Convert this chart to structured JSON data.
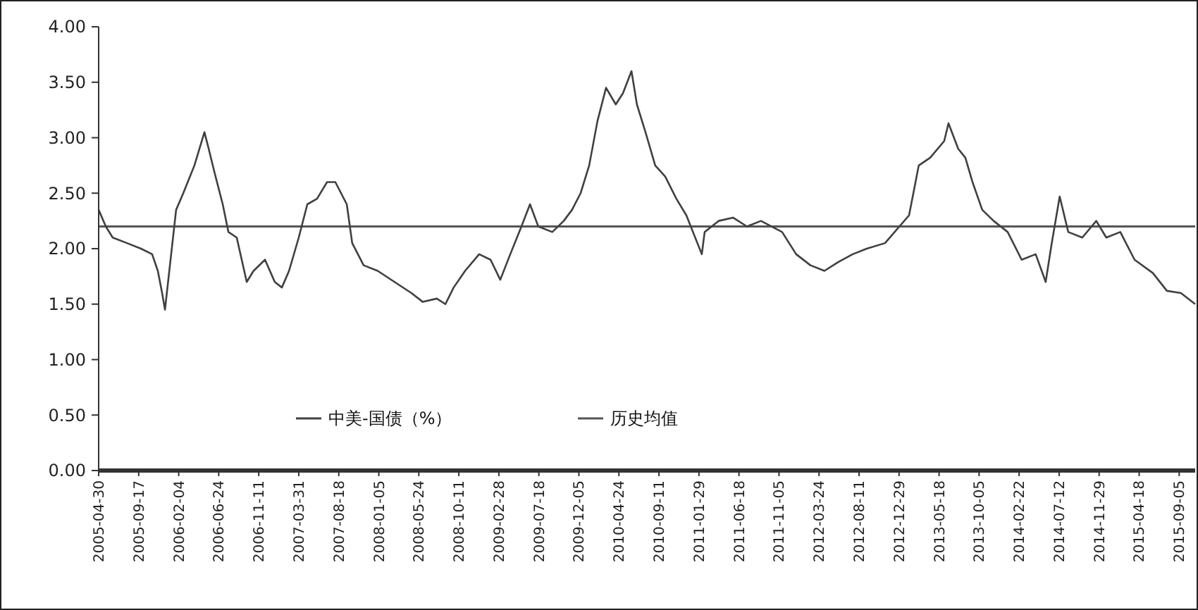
{
  "chart_data": {
    "type": "line",
    "xlim": [
      "2005-04-30",
      "2015-10-31"
    ],
    "xticks": [
      "2005-04-30",
      "2005-09-17",
      "2006-02-04",
      "2006-06-24",
      "2006-11-11",
      "2007-03-31",
      "2007-08-18",
      "2008-01-05",
      "2008-05-24",
      "2008-10-11",
      "2009-02-28",
      "2009-07-18",
      "2009-12-05",
      "2010-04-24",
      "2010-09-11",
      "2011-01-29",
      "2011-06-18",
      "2011-11-05",
      "2012-03-24",
      "2012-08-11",
      "2012-12-29",
      "2013-05-18",
      "2013-10-05",
      "2014-02-22",
      "2014-07-12",
      "2014-11-29",
      "2015-04-18",
      "2015-09-05"
    ],
    "ylim": [
      0,
      4
    ],
    "yticks": [
      {
        "value": 0,
        "label": "0.00"
      },
      {
        "value": 0.5,
        "label": "0.50"
      },
      {
        "value": 1,
        "label": "1.00"
      },
      {
        "value": 1.5,
        "label": "1.50"
      },
      {
        "value": 2,
        "label": "2.00"
      },
      {
        "value": 2.5,
        "label": "2.50"
      },
      {
        "value": 3,
        "label": "3.00"
      },
      {
        "value": 3.5,
        "label": "3.50"
      },
      {
        "value": 4,
        "label": "4.00"
      }
    ],
    "grid": false,
    "legend": "bottom",
    "marker": "none",
    "line_style": "solid",
    "ref_lines": [
      {
        "axis": "y",
        "value": 2.2,
        "label": "历史均值",
        "color": "#555555"
      }
    ],
    "series": [
      {
        "name": "中美-国债（%）",
        "color": "#404040",
        "x": [
          "2005-04-30",
          "2005-05-25",
          "2005-06-18",
          "2005-08-07",
          "2005-09-25",
          "2005-11-03",
          "2005-11-23",
          "2005-12-08",
          "2005-12-18",
          "2006-01-26",
          "2006-02-20",
          "2006-03-31",
          "2006-05-05",
          "2006-05-20",
          "2006-06-08",
          "2006-07-08",
          "2006-07-28",
          "2006-08-26",
          "2006-09-30",
          "2006-10-24",
          "2006-12-03",
          "2007-01-06",
          "2007-01-31",
          "2007-02-25",
          "2007-03-31",
          "2007-04-30",
          "2007-06-03",
          "2007-07-08",
          "2007-08-06",
          "2007-09-15",
          "2007-10-04",
          "2007-11-13",
          "2008-01-01",
          "2008-02-29",
          "2008-04-28",
          "2008-06-07",
          "2008-07-26",
          "2008-08-25",
          "2008-09-23",
          "2008-11-02",
          "2008-12-21",
          "2009-01-30",
          "2009-03-05",
          "2009-04-09",
          "2009-05-18",
          "2009-06-17",
          "2009-07-16",
          "2009-09-03",
          "2009-10-13",
          "2009-11-11",
          "2009-12-11",
          "2010-01-10",
          "2010-02-08",
          "2010-03-10",
          "2010-04-13",
          "2010-05-08",
          "2010-06-07",
          "2010-06-26",
          "2010-07-26",
          "2010-08-29",
          "2010-10-03",
          "2010-11-11",
          "2010-12-16",
          "2011-02-08",
          "2011-02-18",
          "2011-04-08",
          "2011-05-28",
          "2011-07-16",
          "2011-09-03",
          "2011-11-16",
          "2012-01-04",
          "2012-02-23",
          "2012-04-12",
          "2012-05-31",
          "2012-07-20",
          "2012-09-07",
          "2012-11-10",
          "2013-02-02",
          "2013-03-08",
          "2013-04-17",
          "2013-06-05",
          "2013-06-20",
          "2013-07-24",
          "2013-08-18",
          "2013-09-12",
          "2013-10-16",
          "2013-11-25",
          "2014-01-13",
          "2014-03-03",
          "2014-04-21",
          "2014-05-26",
          "2014-06-15",
          "2014-07-14",
          "2014-08-13",
          "2014-10-01",
          "2014-11-19",
          "2014-12-24",
          "2015-02-11",
          "2015-04-02",
          "2015-06-05",
          "2015-07-24",
          "2015-09-11",
          "2015-10-31"
        ],
        "values": [
          2.35,
          2.2,
          2.1,
          2.05,
          2.0,
          1.95,
          1.8,
          1.6,
          1.45,
          2.35,
          2.5,
          2.75,
          3.05,
          2.9,
          2.7,
          2.4,
          2.15,
          2.1,
          1.7,
          1.8,
          1.9,
          1.7,
          1.65,
          1.8,
          2.1,
          2.4,
          2.45,
          2.6,
          2.6,
          2.4,
          2.05,
          1.85,
          1.8,
          1.7,
          1.6,
          1.52,
          1.55,
          1.5,
          1.65,
          1.8,
          1.95,
          1.9,
          1.72,
          1.95,
          2.2,
          2.4,
          2.2,
          2.15,
          2.25,
          2.35,
          2.5,
          2.75,
          3.15,
          3.45,
          3.3,
          3.4,
          3.6,
          3.3,
          3.05,
          2.75,
          2.65,
          2.45,
          2.3,
          1.95,
          2.15,
          2.25,
          2.28,
          2.2,
          2.25,
          2.15,
          1.95,
          1.85,
          1.8,
          1.88,
          1.95,
          2.0,
          2.05,
          2.3,
          2.75,
          2.82,
          2.97,
          3.13,
          2.9,
          2.82,
          2.6,
          2.35,
          2.25,
          2.15,
          1.9,
          1.95,
          1.7,
          2.03,
          2.47,
          2.15,
          2.1,
          2.25,
          2.1,
          2.15,
          1.9,
          1.78,
          1.62,
          1.6,
          1.5
        ]
      }
    ]
  }
}
